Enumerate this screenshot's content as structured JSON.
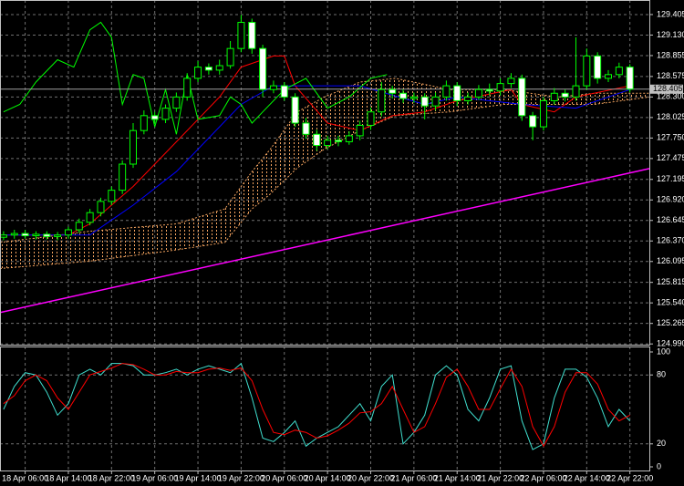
{
  "chart_data": [
    {
      "type": "candlestick",
      "up_color": "#000000",
      "down_color": "#ffffff",
      "wick_color": "#00ff00",
      "open": [
        126.42,
        126.45,
        126.47,
        126.44,
        126.46,
        126.43,
        126.45,
        126.52,
        126.62,
        126.75,
        126.9,
        127.05,
        127.4,
        127.85,
        128.05,
        128.0,
        128.15,
        128.3,
        128.55,
        128.7,
        128.66,
        128.72,
        128.95,
        129.3,
        128.95,
        128.4,
        128.45,
        128.3,
        127.95,
        127.8,
        127.65,
        127.72,
        127.7,
        127.78,
        127.92,
        128.1,
        128.4,
        128.35,
        128.28,
        128.3,
        128.18,
        128.3,
        128.45,
        128.25,
        128.3,
        128.4,
        128.38,
        128.48,
        128.55,
        128.05,
        127.9,
        128.25,
        128.35,
        128.3,
        128.45,
        128.85,
        128.55,
        128.6,
        128.7
      ],
      "high": [
        126.5,
        126.52,
        126.52,
        126.5,
        126.5,
        126.49,
        126.56,
        126.67,
        126.8,
        126.95,
        127.1,
        127.45,
        127.95,
        128.12,
        128.1,
        128.2,
        128.36,
        128.62,
        128.78,
        128.75,
        128.8,
        129.05,
        129.4,
        129.35,
        129.0,
        128.52,
        128.5,
        128.35,
        128.02,
        127.86,
        127.78,
        127.78,
        127.84,
        127.98,
        128.16,
        128.5,
        128.45,
        128.4,
        128.36,
        128.35,
        128.36,
        128.52,
        128.5,
        128.36,
        128.46,
        128.48,
        128.55,
        128.62,
        128.6,
        128.1,
        128.3,
        128.42,
        128.4,
        129.1,
        128.95,
        128.9,
        128.66,
        128.76,
        128.74
      ],
      "low": [
        126.38,
        126.4,
        126.4,
        126.39,
        126.39,
        126.38,
        126.4,
        126.48,
        126.58,
        126.7,
        126.85,
        127.0,
        127.35,
        127.8,
        127.94,
        127.95,
        128.1,
        128.25,
        128.5,
        128.6,
        128.6,
        128.68,
        128.9,
        128.88,
        128.3,
        128.35,
        128.25,
        127.9,
        127.74,
        127.58,
        127.6,
        127.64,
        127.66,
        127.72,
        127.86,
        128.04,
        128.28,
        128.22,
        128.22,
        128.0,
        128.12,
        128.25,
        128.18,
        128.2,
        128.26,
        128.32,
        128.32,
        128.42,
        127.98,
        127.72,
        127.85,
        128.2,
        128.24,
        128.25,
        128.4,
        128.48,
        128.5,
        128.55,
        128.36
      ],
      "close": [
        126.45,
        126.47,
        126.44,
        126.46,
        126.43,
        126.45,
        126.52,
        126.62,
        126.75,
        126.9,
        127.05,
        127.4,
        127.85,
        128.05,
        128.0,
        128.15,
        128.3,
        128.55,
        128.7,
        128.66,
        128.72,
        128.95,
        129.3,
        128.95,
        128.4,
        128.45,
        128.3,
        127.95,
        127.8,
        127.65,
        127.72,
        127.7,
        127.78,
        127.92,
        128.1,
        128.4,
        128.35,
        128.28,
        128.3,
        128.18,
        128.3,
        128.45,
        128.25,
        128.3,
        128.4,
        128.38,
        128.48,
        128.55,
        128.05,
        127.9,
        128.25,
        128.35,
        128.3,
        128.45,
        128.85,
        128.55,
        128.6,
        128.7,
        128.405
      ],
      "cloud": {
        "color": "#f4a460",
        "x": [
          -0.33,
          8,
          16,
          20.5,
          23,
          24.7,
          27.2,
          29.7,
          33,
          36.3,
          41.3,
          46.3,
          51.3,
          54.7,
          59.8
        ],
        "span_a": [
          126.35,
          126.5,
          126.6,
          126.8,
          127.3,
          127.6,
          128.1,
          128.3,
          128.5,
          128.55,
          128.4,
          128.4,
          128.3,
          128.35,
          128.35
        ],
        "span_b": [
          126.0,
          126.1,
          126.25,
          126.35,
          126.8,
          127.0,
          127.35,
          127.6,
          127.85,
          128.05,
          128.1,
          128.2,
          128.2,
          128.2,
          128.3
        ]
      },
      "overlays": [
        {
          "color": "#ff0000",
          "x": [
            0,
            6,
            8,
            12,
            16,
            20,
            22,
            25,
            26,
            27,
            30,
            33,
            36,
            39,
            42,
            47,
            48,
            51,
            53,
            58
          ],
          "values": [
            126.45,
            126.45,
            126.6,
            127.1,
            127.7,
            128.3,
            128.7,
            128.85,
            128.85,
            128.45,
            127.95,
            127.85,
            128.05,
            128.1,
            128.25,
            128.4,
            128.2,
            128.1,
            128.3,
            128.45
          ]
        },
        {
          "color": "#0000ff",
          "x": [
            0,
            8,
            12,
            16,
            20,
            22,
            25,
            27,
            33,
            39,
            42,
            45,
            48,
            53,
            58
          ],
          "values": [
            126.45,
            126.45,
            126.85,
            127.3,
            127.9,
            128.2,
            128.45,
            128.45,
            128.45,
            128.2,
            128.3,
            128.25,
            128.2,
            128.15,
            128.4
          ]
        },
        {
          "color": "#00ff00",
          "x": [
            0,
            1.5,
            3,
            5,
            6.5,
            8,
            9,
            10,
            11,
            12,
            13,
            14,
            15,
            16,
            17,
            18,
            20,
            21,
            22,
            23,
            24,
            26,
            28,
            30,
            32,
            34,
            35.5
          ],
          "values": [
            128.1,
            128.2,
            128.5,
            128.8,
            128.7,
            129.2,
            129.3,
            129.1,
            128.2,
            128.6,
            128.55,
            127.9,
            128.4,
            127.8,
            128.6,
            128.0,
            128.05,
            128.3,
            128.2,
            127.95,
            128.1,
            128.4,
            128.55,
            128.15,
            128.3,
            128.55,
            128.6
          ]
        }
      ],
      "trendline": {
        "color": "#ff00ff",
        "x": [
          -0.33,
          59.8
        ],
        "values": [
          125.41,
          127.34
        ]
      },
      "last_price": 128.405,
      "xlim": [
        -0.33,
        59.8
      ],
      "ylim": [
        124.98,
        129.6
      ],
      "yticks": [
        129.405,
        {
          "value": 129.13,
          "label": "129.130"
        },
        128.855,
        128.575,
        {
          "value": 128.3,
          "label": "128.300"
        },
        128.025,
        {
          "value": 127.75,
          "label": "127.750"
        },
        127.475,
        127.195,
        {
          "value": 126.92,
          "label": "126.920"
        },
        126.645,
        {
          "value": 126.37,
          "label": "126.370"
        },
        126.095,
        125.815,
        {
          "value": 125.54,
          "label": "125.540"
        },
        125.265,
        {
          "value": 124.99,
          "label": "124.990"
        }
      ],
      "xticks": [
        {
          "value": 2,
          "label": "18 Apr 06:00"
        },
        {
          "value": 6,
          "label": "18 Apr 14:00"
        },
        {
          "value": 10,
          "label": "18 Apr 22:00"
        },
        {
          "value": 14,
          "label": "19 Apr 06:00"
        },
        {
          "value": 18,
          "label": "19 Apr 14:00"
        },
        {
          "value": 22,
          "label": "19 Apr 22:00"
        },
        {
          "value": 26,
          "label": "20 Apr 06:00"
        },
        {
          "value": 30,
          "label": "20 Apr 14:00"
        },
        {
          "value": 34,
          "label": "20 Apr 22:00"
        },
        {
          "value": 38,
          "label": "21 Apr 06:00"
        },
        {
          "value": 42,
          "label": "21 Apr 14:00"
        },
        {
          "value": 46,
          "label": "21 Apr 22:00"
        },
        {
          "value": 50,
          "label": "22 Apr 06:00"
        },
        {
          "value": 54,
          "label": "22 Apr 14:00"
        },
        {
          "value": 58,
          "label": "22 Apr 22:00"
        }
      ],
      "grid": true
    },
    {
      "type": "line",
      "series": [
        {
          "color": "#40e0d0",
          "values": [
            50,
            70,
            82,
            80,
            65,
            45,
            55,
            80,
            85,
            80,
            90,
            90,
            88,
            80,
            80,
            82,
            85,
            80,
            85,
            88,
            85,
            82,
            90,
            60,
            25,
            22,
            30,
            40,
            18,
            25,
            30,
            35,
            45,
            55,
            40,
            70,
            80,
            20,
            30,
            45,
            80,
            88,
            80,
            50,
            40,
            60,
            85,
            88,
            40,
            15,
            20,
            60,
            85,
            85,
            78,
            60,
            35,
            50,
            40
          ]
        },
        {
          "color": "#ff0000",
          "values": [
            55,
            62,
            75,
            80,
            75,
            60,
            50,
            65,
            80,
            83,
            86,
            90,
            89,
            85,
            80,
            80,
            83,
            82,
            82,
            85,
            86,
            84,
            86,
            75,
            50,
            30,
            28,
            32,
            30,
            25,
            27,
            32,
            38,
            47,
            48,
            55,
            70,
            50,
            30,
            35,
            55,
            78,
            85,
            70,
            50,
            50,
            68,
            85,
            70,
            35,
            18,
            35,
            65,
            82,
            82,
            72,
            50,
            40,
            45
          ]
        }
      ],
      "ylim": [
        0,
        100
      ],
      "yticks": [
        100,
        80,
        20,
        0
      ]
    }
  ]
}
